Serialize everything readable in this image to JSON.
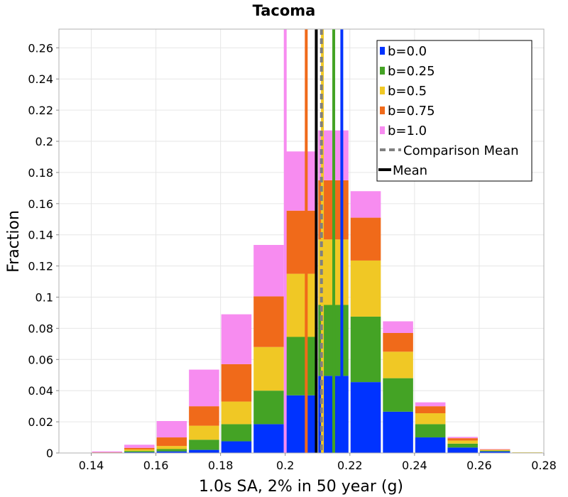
{
  "chart_data": {
    "type": "bar",
    "stacked": true,
    "title": "Tacoma",
    "xlabel": "1.0s SA, 2% in 50 year (g)",
    "ylabel": "Fraction",
    "xlim": [
      0.13,
      0.28
    ],
    "ylim": [
      0,
      0.272
    ],
    "grid": true,
    "legend_position": "top-right",
    "x_ticks": [
      "0.14",
      "0.16",
      "0.18",
      "0.2",
      "0.22",
      "0.24",
      "0.26",
      "0.28"
    ],
    "y_ticks": [
      "0",
      "0.02",
      "0.04",
      "0.06",
      "0.08",
      "0.1",
      "0.12",
      "0.14",
      "0.16",
      "0.18",
      "0.2",
      "0.22",
      "0.24",
      "0.26"
    ],
    "bin_starts": [
      0.13,
      0.14,
      0.15,
      0.16,
      0.17,
      0.18,
      0.19,
      0.2,
      0.21,
      0.22,
      0.23,
      0.24,
      0.25,
      0.26,
      0.27
    ],
    "bin_width": 0.01,
    "series": [
      {
        "name": "b=0.0",
        "color": "#0033ff",
        "values": [
          0,
          0,
          0.0005,
          0.001,
          0.002,
          0.0075,
          0.0185,
          0.037,
          0.0495,
          0.0455,
          0.0265,
          0.01,
          0.0035,
          0.001,
          0.0002
        ]
      },
      {
        "name": "b=0.25",
        "color": "#44a325",
        "values": [
          0,
          0.0002,
          0.0008,
          0.0015,
          0.0065,
          0.011,
          0.0215,
          0.0375,
          0.0455,
          0.042,
          0.0215,
          0.0085,
          0.0025,
          0.0005,
          0.0001
        ]
      },
      {
        "name": "b=0.5",
        "color": "#f0c825",
        "values": [
          0,
          0.0001,
          0.001,
          0.002,
          0.009,
          0.0145,
          0.028,
          0.0405,
          0.042,
          0.036,
          0.017,
          0.007,
          0.002,
          0.0005,
          0.0001
        ]
      },
      {
        "name": "b=0.75",
        "color": "#f06a1a",
        "values": [
          0,
          0.0001,
          0.001,
          0.0055,
          0.0125,
          0.024,
          0.0325,
          0.0405,
          0.038,
          0.0275,
          0.012,
          0.0045,
          0.0015,
          0.0003,
          0
        ]
      },
      {
        "name": "b=1.0",
        "color": "#f78cf0",
        "values": [
          0,
          0.0006,
          0.002,
          0.0105,
          0.0235,
          0.032,
          0.033,
          0.038,
          0.032,
          0.017,
          0.0075,
          0.0025,
          0.0008,
          0.0002,
          0
        ]
      }
    ],
    "mean_lines": [
      {
        "name": "b=0.0",
        "x": 0.2175,
        "color": "#0033ff"
      },
      {
        "name": "b=0.25",
        "x": 0.215,
        "color": "#44a325"
      },
      {
        "name": "b=0.5",
        "x": 0.2115,
        "color": "#f0c825"
      },
      {
        "name": "b=0.75",
        "x": 0.2065,
        "color": "#f06a1a"
      },
      {
        "name": "b=1.0",
        "x": 0.2,
        "color": "#f78cf0"
      }
    ],
    "comparison_mean": {
      "name": "Comparison Mean",
      "x": 0.2112,
      "color": "#808080",
      "style": "dashed"
    },
    "overall_mean": {
      "name": "Mean",
      "x": 0.2096,
      "color": "#000000"
    },
    "legend": [
      "b=0.0",
      "b=0.25",
      "b=0.5",
      "b=0.75",
      "b=1.0",
      "Comparison Mean",
      "Mean"
    ]
  }
}
